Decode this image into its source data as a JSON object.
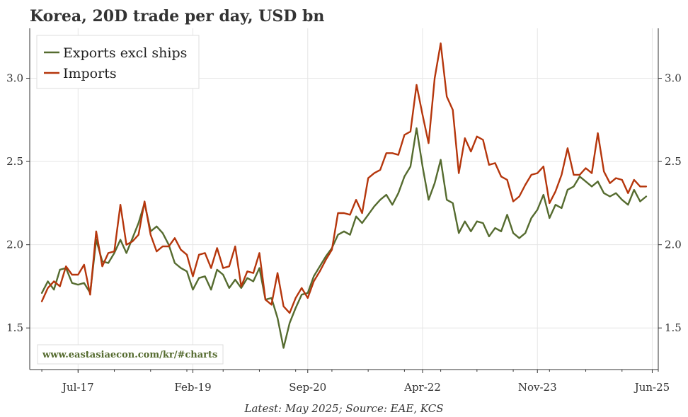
{
  "chart_data": {
    "type": "line",
    "title": "Korea, 20D trade per day, USD bn",
    "source_note": "Latest: May 2025; Source: EAE, KCS",
    "watermark": "www.eastasiaecon.com/kr/#charts",
    "xlabel": "",
    "ylabel": "",
    "x_range": [
      "2016-11",
      "2025-07"
    ],
    "ylim": [
      1.25,
      3.3
    ],
    "y_ticks": [
      1.5,
      2.0,
      2.5,
      3.0
    ],
    "y_tick_labels": [
      "1.5",
      "2.0",
      "2.5",
      "3.0"
    ],
    "x_ticks": [
      "2017-07",
      "2019-02",
      "2020-09",
      "2022-04",
      "2023-11",
      "2025-06"
    ],
    "x_tick_labels": [
      "Jul-17",
      "Feb-19",
      "Sep-20",
      "Apr-22",
      "Nov-23",
      "Jun-25"
    ],
    "grid": true,
    "legend_position": "top-left",
    "colors": {
      "exports": "#556b2f",
      "imports": "#b5360c",
      "url": "#556b2f"
    },
    "series": [
      {
        "name": "Exports excl ships",
        "color": "#556b2f",
        "points": [
          [
            "2017-01",
            1.71
          ],
          [
            "2017-02",
            1.78
          ],
          [
            "2017-03",
            1.73
          ],
          [
            "2017-04",
            1.85
          ],
          [
            "2017-05",
            1.86
          ],
          [
            "2017-06",
            1.77
          ],
          [
            "2017-07",
            1.76
          ],
          [
            "2017-08",
            1.77
          ],
          [
            "2017-09",
            1.71
          ],
          [
            "2017-10",
            2.03
          ],
          [
            "2017-11",
            1.9
          ],
          [
            "2017-12",
            1.89
          ],
          [
            "2018-01",
            1.95
          ],
          [
            "2018-02",
            2.03
          ],
          [
            "2018-03",
            1.95
          ],
          [
            "2018-04",
            2.04
          ],
          [
            "2018-05",
            2.13
          ],
          [
            "2018-06",
            2.25
          ],
          [
            "2018-07",
            2.08
          ],
          [
            "2018-08",
            2.11
          ],
          [
            "2018-09",
            2.07
          ],
          [
            "2018-10",
            2.0
          ],
          [
            "2018-11",
            1.89
          ],
          [
            "2018-12",
            1.86
          ],
          [
            "2019-01",
            1.84
          ],
          [
            "2019-02",
            1.73
          ],
          [
            "2019-03",
            1.8
          ],
          [
            "2019-04",
            1.81
          ],
          [
            "2019-05",
            1.73
          ],
          [
            "2019-06",
            1.85
          ],
          [
            "2019-07",
            1.82
          ],
          [
            "2019-08",
            1.74
          ],
          [
            "2019-09",
            1.79
          ],
          [
            "2019-10",
            1.74
          ],
          [
            "2019-11",
            1.8
          ],
          [
            "2019-12",
            1.78
          ],
          [
            "2020-01",
            1.86
          ],
          [
            "2020-02",
            1.67
          ],
          [
            "2020-03",
            1.68
          ],
          [
            "2020-04",
            1.56
          ],
          [
            "2020-05",
            1.38
          ],
          [
            "2020-06",
            1.53
          ],
          [
            "2020-07",
            1.62
          ],
          [
            "2020-08",
            1.7
          ],
          [
            "2020-09",
            1.71
          ],
          [
            "2020-10",
            1.81
          ],
          [
            "2020-11",
            1.87
          ],
          [
            "2020-12",
            1.93
          ],
          [
            "2021-01",
            1.98
          ],
          [
            "2021-02",
            2.06
          ],
          [
            "2021-03",
            2.08
          ],
          [
            "2021-04",
            2.06
          ],
          [
            "2021-05",
            2.17
          ],
          [
            "2021-06",
            2.13
          ],
          [
            "2021-07",
            2.18
          ],
          [
            "2021-08",
            2.23
          ],
          [
            "2021-09",
            2.27
          ],
          [
            "2021-10",
            2.3
          ],
          [
            "2021-11",
            2.24
          ],
          [
            "2021-12",
            2.31
          ],
          [
            "2022-01",
            2.41
          ],
          [
            "2022-02",
            2.47
          ],
          [
            "2022-03",
            2.7
          ],
          [
            "2022-04",
            2.47
          ],
          [
            "2022-05",
            2.27
          ],
          [
            "2022-06",
            2.37
          ],
          [
            "2022-07",
            2.51
          ],
          [
            "2022-08",
            2.27
          ],
          [
            "2022-09",
            2.25
          ],
          [
            "2022-10",
            2.07
          ],
          [
            "2022-11",
            2.14
          ],
          [
            "2022-12",
            2.08
          ],
          [
            "2023-01",
            2.14
          ],
          [
            "2023-02",
            2.13
          ],
          [
            "2023-03",
            2.05
          ],
          [
            "2023-04",
            2.1
          ],
          [
            "2023-05",
            2.08
          ],
          [
            "2023-06",
            2.18
          ],
          [
            "2023-07",
            2.07
          ],
          [
            "2023-08",
            2.04
          ],
          [
            "2023-09",
            2.07
          ],
          [
            "2023-10",
            2.16
          ],
          [
            "2023-11",
            2.21
          ],
          [
            "2023-12",
            2.3
          ],
          [
            "2024-01",
            2.16
          ],
          [
            "2024-02",
            2.24
          ],
          [
            "2024-03",
            2.22
          ],
          [
            "2024-04",
            2.33
          ],
          [
            "2024-05",
            2.35
          ],
          [
            "2024-06",
            2.41
          ],
          [
            "2024-07",
            2.38
          ],
          [
            "2024-08",
            2.35
          ],
          [
            "2024-09",
            2.38
          ],
          [
            "2024-10",
            2.31
          ],
          [
            "2024-11",
            2.29
          ],
          [
            "2024-12",
            2.31
          ],
          [
            "2025-01",
            2.27
          ],
          [
            "2025-02",
            2.24
          ],
          [
            "2025-03",
            2.33
          ],
          [
            "2025-04",
            2.26
          ],
          [
            "2025-05",
            2.29
          ]
        ]
      },
      {
        "name": "Imports",
        "color": "#b5360c",
        "points": [
          [
            "2017-01",
            1.66
          ],
          [
            "2017-02",
            1.74
          ],
          [
            "2017-03",
            1.78
          ],
          [
            "2017-04",
            1.75
          ],
          [
            "2017-05",
            1.87
          ],
          [
            "2017-06",
            1.82
          ],
          [
            "2017-07",
            1.82
          ],
          [
            "2017-08",
            1.88
          ],
          [
            "2017-09",
            1.7
          ],
          [
            "2017-10",
            2.08
          ],
          [
            "2017-11",
            1.87
          ],
          [
            "2017-12",
            1.95
          ],
          [
            "2018-01",
            1.96
          ],
          [
            "2018-02",
            2.24
          ],
          [
            "2018-03",
            2.0
          ],
          [
            "2018-04",
            2.02
          ],
          [
            "2018-05",
            2.06
          ],
          [
            "2018-06",
            2.26
          ],
          [
            "2018-07",
            2.06
          ],
          [
            "2018-08",
            1.96
          ],
          [
            "2018-09",
            1.99
          ],
          [
            "2018-10",
            1.99
          ],
          [
            "2018-11",
            2.04
          ],
          [
            "2018-12",
            1.97
          ],
          [
            "2019-01",
            1.94
          ],
          [
            "2019-02",
            1.81
          ],
          [
            "2019-03",
            1.94
          ],
          [
            "2019-04",
            1.95
          ],
          [
            "2019-05",
            1.86
          ],
          [
            "2019-06",
            1.98
          ],
          [
            "2019-07",
            1.86
          ],
          [
            "2019-08",
            1.87
          ],
          [
            "2019-09",
            1.99
          ],
          [
            "2019-10",
            1.75
          ],
          [
            "2019-11",
            1.84
          ],
          [
            "2019-12",
            1.83
          ],
          [
            "2020-01",
            1.95
          ],
          [
            "2020-02",
            1.67
          ],
          [
            "2020-03",
            1.64
          ],
          [
            "2020-04",
            1.83
          ],
          [
            "2020-05",
            1.63
          ],
          [
            "2020-06",
            1.59
          ],
          [
            "2020-07",
            1.68
          ],
          [
            "2020-08",
            1.74
          ],
          [
            "2020-09",
            1.68
          ],
          [
            "2020-10",
            1.78
          ],
          [
            "2020-11",
            1.84
          ],
          [
            "2020-12",
            1.91
          ],
          [
            "2021-01",
            1.97
          ],
          [
            "2021-02",
            2.19
          ],
          [
            "2021-03",
            2.19
          ],
          [
            "2021-04",
            2.18
          ],
          [
            "2021-05",
            2.27
          ],
          [
            "2021-06",
            2.19
          ],
          [
            "2021-07",
            2.4
          ],
          [
            "2021-08",
            2.43
          ],
          [
            "2021-09",
            2.45
          ],
          [
            "2021-10",
            2.55
          ],
          [
            "2021-11",
            2.55
          ],
          [
            "2021-12",
            2.54
          ],
          [
            "2022-01",
            2.66
          ],
          [
            "2022-02",
            2.68
          ],
          [
            "2022-03",
            2.96
          ],
          [
            "2022-04",
            2.78
          ],
          [
            "2022-05",
            2.61
          ],
          [
            "2022-06",
            3.0
          ],
          [
            "2022-07",
            3.21
          ],
          [
            "2022-08",
            2.89
          ],
          [
            "2022-09",
            2.81
          ],
          [
            "2022-10",
            2.43
          ],
          [
            "2022-11",
            2.64
          ],
          [
            "2022-12",
            2.56
          ],
          [
            "2023-01",
            2.65
          ],
          [
            "2023-02",
            2.63
          ],
          [
            "2023-03",
            2.48
          ],
          [
            "2023-04",
            2.49
          ],
          [
            "2023-05",
            2.41
          ],
          [
            "2023-06",
            2.39
          ],
          [
            "2023-07",
            2.26
          ],
          [
            "2023-08",
            2.29
          ],
          [
            "2023-09",
            2.36
          ],
          [
            "2023-10",
            2.42
          ],
          [
            "2023-11",
            2.43
          ],
          [
            "2023-12",
            2.47
          ],
          [
            "2024-01",
            2.25
          ],
          [
            "2024-02",
            2.32
          ],
          [
            "2024-03",
            2.42
          ],
          [
            "2024-04",
            2.58
          ],
          [
            "2024-05",
            2.42
          ],
          [
            "2024-06",
            2.42
          ],
          [
            "2024-07",
            2.46
          ],
          [
            "2024-08",
            2.43
          ],
          [
            "2024-09",
            2.67
          ],
          [
            "2024-10",
            2.44
          ],
          [
            "2024-11",
            2.37
          ],
          [
            "2024-12",
            2.4
          ],
          [
            "2025-01",
            2.39
          ],
          [
            "2025-02",
            2.31
          ],
          [
            "2025-03",
            2.39
          ],
          [
            "2025-04",
            2.35
          ],
          [
            "2025-05",
            2.35
          ]
        ]
      }
    ]
  }
}
